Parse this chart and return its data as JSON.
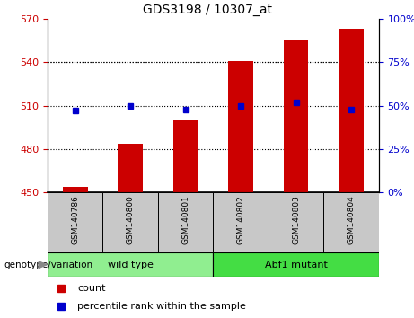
{
  "title": "GDS3198 / 10307_at",
  "categories": [
    "GSM140786",
    "GSM140800",
    "GSM140801",
    "GSM140802",
    "GSM140803",
    "GSM140804"
  ],
  "bar_values": [
    454,
    484,
    500,
    541,
    556,
    563
  ],
  "percentile_values": [
    47,
    50,
    48,
    50,
    52,
    48
  ],
  "bar_color": "#cc0000",
  "dot_color": "#0000cc",
  "ylim_left": [
    450,
    570
  ],
  "ylim_right": [
    0,
    100
  ],
  "yticks_left": [
    450,
    480,
    510,
    540,
    570
  ],
  "yticks_right": [
    0,
    25,
    50,
    75,
    100
  ],
  "grid_ticks": [
    480,
    510,
    540
  ],
  "groups": [
    {
      "label": "wild type",
      "indices": [
        0,
        1,
        2
      ],
      "color": "#90ee90"
    },
    {
      "label": "Abf1 mutant",
      "indices": [
        3,
        4,
        5
      ],
      "color": "#44dd44"
    }
  ],
  "group_label": "genotype/variation",
  "legend_items": [
    {
      "label": "count",
      "color": "#cc0000"
    },
    {
      "label": "percentile rank within the sample",
      "color": "#0000cc"
    }
  ],
  "tick_label_color_left": "#cc0000",
  "tick_label_color_right": "#0000cc",
  "bar_width": 0.45,
  "base_value": 450,
  "sample_box_color": "#c8c8c8",
  "title_fontsize": 10,
  "axis_label_fontsize": 8,
  "tick_fontsize": 8,
  "legend_fontsize": 8,
  "group_fontsize": 8,
  "cat_fontsize": 6.5
}
